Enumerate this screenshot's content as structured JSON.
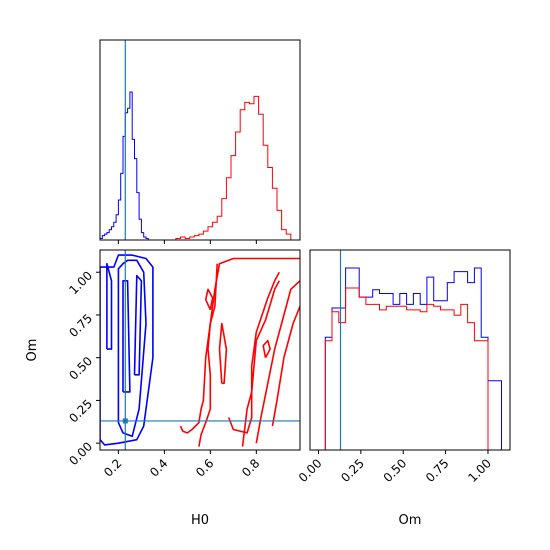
{
  "chart_data": [
    {
      "type": "histogram",
      "panel": "H0 marginal",
      "xlim": [
        0.12,
        0.99
      ],
      "x_ticks": [
        0.2,
        0.4,
        0.6,
        0.8
      ],
      "truth": 0.23,
      "series": [
        {
          "color": "#0000ff",
          "bin_start": 0.12,
          "bin_width": 0.01,
          "values": [
            0.01,
            0.03,
            0.04,
            0.05,
            0.07,
            0.09,
            0.12,
            0.17,
            0.27,
            0.45,
            0.7,
            0.86,
            0.89,
            1.0,
            0.68,
            0.55,
            0.32,
            0.14,
            0.05,
            0.02,
            0.01,
            0.0,
            0.0,
            0.0
          ]
        },
        {
          "color": "#ff0000",
          "bin_start": 0.43,
          "bin_width": 0.02,
          "values": [
            0.0,
            0.01,
            0.02,
            0.01,
            0.02,
            0.03,
            0.04,
            0.06,
            0.09,
            0.12,
            0.16,
            0.28,
            0.42,
            0.57,
            0.73,
            0.88,
            0.93,
            0.92,
            0.97,
            0.85,
            0.64,
            0.49,
            0.35,
            0.2,
            0.07,
            0.04
          ]
        }
      ]
    },
    {
      "type": "contour",
      "panel": "H0 vs Om joint",
      "xlabel": "H0",
      "ylabel": "Om",
      "xlim": [
        0.12,
        0.99
      ],
      "ylim": [
        -0.04,
        1.13
      ],
      "x_ticks": [
        0.2,
        0.4,
        0.6,
        0.8
      ],
      "y_ticks": [
        0.0,
        0.25,
        0.5,
        0.75,
        1.0
      ],
      "truth": [
        0.23,
        0.13
      ],
      "series": [
        {
          "color": "#0000ff",
          "contours": [
            [
              [
                0.12,
                0.02
              ],
              [
                0.12,
                1.03
              ],
              [
                0.18,
                1.03
              ],
              [
                0.2,
                1.1
              ],
              [
                0.26,
                1.1
              ],
              [
                0.32,
                1.08
              ],
              [
                0.35,
                1.03
              ],
              [
                0.35,
                0.5
              ],
              [
                0.31,
                0.1
              ],
              [
                0.28,
                0.02
              ],
              [
                0.2,
                0.0
              ],
              [
                0.14,
                -0.01
              ],
              [
                0.12,
                0.02
              ]
            ],
            [
              [
                0.15,
                0.55
              ],
              [
                0.15,
                1.05
              ],
              [
                0.17,
                0.95
              ],
              [
                0.17,
                0.55
              ],
              [
                0.15,
                0.55
              ]
            ],
            [
              [
                0.2,
                0.12
              ],
              [
                0.2,
                1.02
              ],
              [
                0.22,
                1.05
              ],
              [
                0.24,
                1.07
              ],
              [
                0.28,
                1.07
              ],
              [
                0.31,
                1.0
              ],
              [
                0.32,
                0.7
              ],
              [
                0.29,
                0.2
              ],
              [
                0.26,
                0.04
              ],
              [
                0.22,
                0.06
              ],
              [
                0.2,
                0.12
              ]
            ],
            [
              [
                0.22,
                0.3
              ],
              [
                0.22,
                0.95
              ],
              [
                0.24,
                0.95
              ],
              [
                0.25,
                0.3
              ],
              [
                0.22,
                0.3
              ]
            ],
            [
              [
                0.27,
                0.4
              ],
              [
                0.28,
                0.98
              ],
              [
                0.3,
                0.95
              ],
              [
                0.29,
                0.4
              ],
              [
                0.27,
                0.4
              ]
            ]
          ]
        },
        {
          "color": "#ff0000",
          "contours": [
            [
              [
                0.47,
                0.1
              ],
              [
                0.48,
                0.07
              ],
              [
                0.5,
                0.06
              ],
              [
                0.52,
                0.08
              ],
              [
                0.55,
                0.12
              ],
              [
                0.56,
                0.2
              ],
              [
                0.57,
                0.25
              ],
              [
                0.58,
                0.5
              ],
              [
                0.6,
                0.7
              ],
              [
                0.62,
                0.9
              ],
              [
                0.64,
                1.05
              ],
              [
                0.7,
                1.08
              ],
              [
                0.99,
                1.08
              ]
            ],
            [
              [
                0.55,
                -0.02
              ],
              [
                0.56,
                0.05
              ],
              [
                0.58,
                0.12
              ],
              [
                0.6,
                0.2
              ],
              [
                0.6,
                0.4
              ],
              [
                0.59,
                0.55
              ],
              [
                0.6,
                0.7
              ],
              [
                0.62,
                0.8
              ],
              [
                0.63,
                1.05
              ]
            ],
            [
              [
                0.6,
                0.78
              ],
              [
                0.58,
                0.84
              ],
              [
                0.59,
                0.9
              ],
              [
                0.61,
                0.85
              ],
              [
                0.6,
                0.78
              ]
            ],
            [
              [
                0.65,
                0.35
              ],
              [
                0.64,
                0.55
              ],
              [
                0.65,
                0.7
              ],
              [
                0.67,
                0.55
              ],
              [
                0.66,
                0.35
              ],
              [
                0.65,
                0.35
              ]
            ],
            [
              [
                0.68,
                0.15
              ],
              [
                0.7,
                0.08
              ],
              [
                0.76,
                0.06
              ],
              [
                0.78,
                0.15
              ],
              [
                0.78,
                0.45
              ],
              [
                0.8,
                0.65
              ],
              [
                0.85,
                0.85
              ],
              [
                0.88,
                0.95
              ],
              [
                0.9,
                1.0
              ]
            ],
            [
              [
                0.74,
                -0.02
              ],
              [
                0.76,
                0.2
              ],
              [
                0.78,
                0.3
              ],
              [
                0.8,
                0.6
              ],
              [
                0.84,
                0.72
              ],
              [
                0.88,
                0.9
              ],
              [
                0.9,
                0.95
              ]
            ],
            [
              [
                0.8,
                0.0
              ],
              [
                0.82,
                0.15
              ],
              [
                0.85,
                0.35
              ],
              [
                0.88,
                0.55
              ],
              [
                0.92,
                0.75
              ],
              [
                0.95,
                0.9
              ],
              [
                0.99,
                0.95
              ]
            ],
            [
              [
                0.87,
                0.1
              ],
              [
                0.89,
                0.25
              ],
              [
                0.92,
                0.5
              ],
              [
                0.96,
                0.7
              ],
              [
                0.99,
                0.8
              ]
            ],
            [
              [
                0.84,
                0.5
              ],
              [
                0.83,
                0.57
              ],
              [
                0.85,
                0.6
              ],
              [
                0.86,
                0.55
              ],
              [
                0.84,
                0.5
              ]
            ]
          ]
        }
      ]
    },
    {
      "type": "histogram",
      "panel": "Om marginal",
      "xlabel": "Om",
      "xlim": [
        -0.05,
        1.13
      ],
      "x_ticks": [
        0.0,
        0.25,
        0.5,
        0.75,
        1.0
      ],
      "truth": 0.13,
      "series": [
        {
          "color": "#0000ff",
          "bin_start": 0.0,
          "bin_width": 0.04,
          "values": [
            0.0,
            0.62,
            0.78,
            0.78,
            1.0,
            1.0,
            0.84,
            0.84,
            0.88,
            0.86,
            0.86,
            0.8,
            0.86,
            0.8,
            0.86,
            0.8,
            0.95,
            0.82,
            0.82,
            0.92,
            0.98,
            0.98,
            0.92,
            1.0,
            0.62,
            0.38,
            0.38,
            0.0
          ]
        },
        {
          "color": "#ff0000",
          "bin_start": 0.0,
          "bin_width": 0.04,
          "values": [
            0.0,
            0.6,
            0.76,
            0.7,
            0.89,
            0.89,
            0.84,
            0.8,
            0.8,
            0.77,
            0.79,
            0.79,
            0.79,
            0.77,
            0.77,
            0.76,
            0.8,
            0.79,
            0.77,
            0.77,
            0.74,
            0.8,
            0.7,
            0.6,
            0.6,
            0.0,
            0.0,
            0.0
          ]
        }
      ]
    }
  ]
}
